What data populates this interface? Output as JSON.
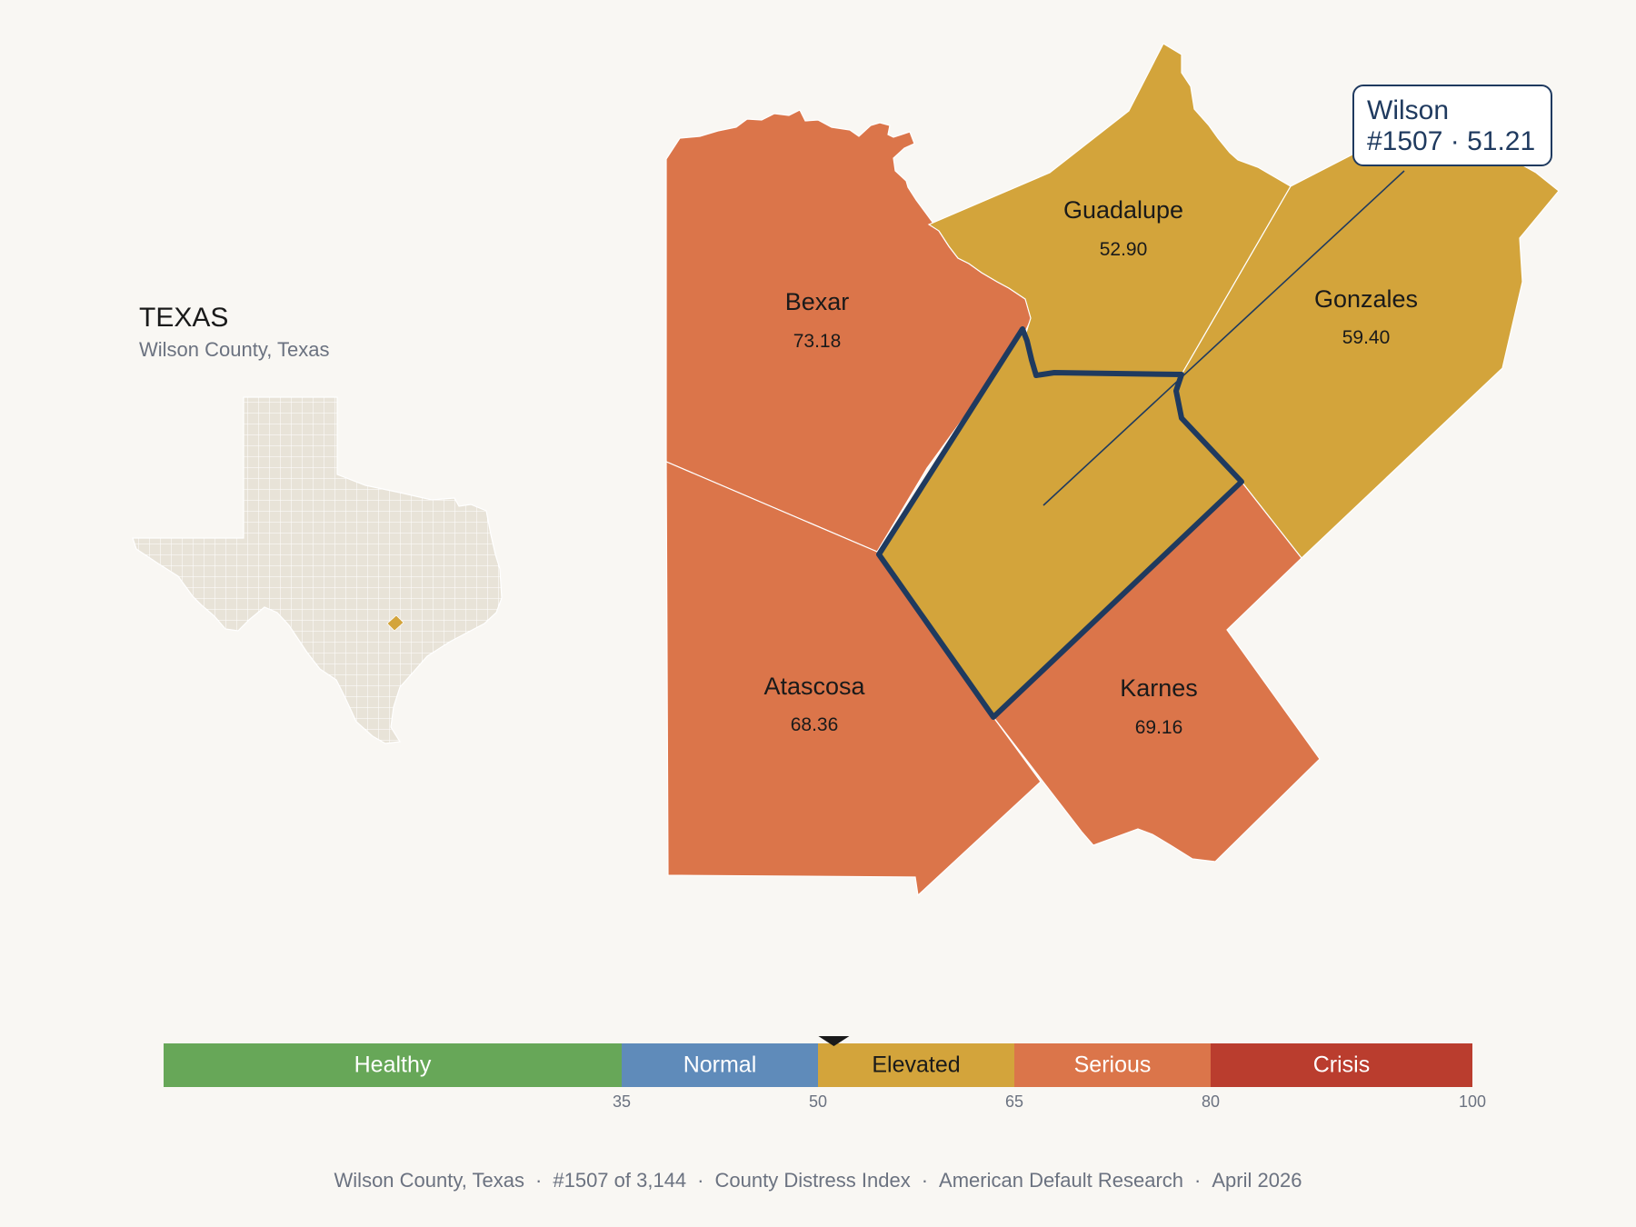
{
  "inset": {
    "state_title": "TEXAS",
    "subtitle": "Wilson County, Texas"
  },
  "counties": [
    {
      "name": "Bexar",
      "value": "73.18",
      "band": "Serious",
      "color": "#db754a"
    },
    {
      "name": "Guadalupe",
      "value": "52.90",
      "band": "Elevated",
      "color": "#d3a43b"
    },
    {
      "name": "Gonzales",
      "value": "59.40",
      "band": "Elevated",
      "color": "#d3a43b"
    },
    {
      "name": "Atascosa",
      "value": "68.36",
      "band": "Serious",
      "color": "#db754a"
    },
    {
      "name": "Karnes",
      "value": "69.16",
      "band": "Serious",
      "color": "#db754a"
    },
    {
      "name": "Wilson",
      "value": "51.21",
      "band": "Elevated",
      "color": "#d3a43b",
      "highlighted": true
    }
  ],
  "callout": {
    "line1": "Wilson",
    "line2": "#1507 · 51.21"
  },
  "legend": {
    "marker_value": 51.21,
    "bands": [
      {
        "label": "Healthy",
        "from": 0,
        "to": 35,
        "color": "#67a758"
      },
      {
        "label": "Normal",
        "from": 35,
        "to": 50,
        "color": "#5f8bba"
      },
      {
        "label": "Elevated",
        "from": 50,
        "to": 65,
        "color": "#d3a43b"
      },
      {
        "label": "Serious",
        "from": 65,
        "to": 80,
        "color": "#db754a"
      },
      {
        "label": "Crisis",
        "from": 80,
        "to": 100,
        "color": "#ba3d2e"
      }
    ],
    "ticks": [
      "35",
      "50",
      "65",
      "80",
      "100"
    ]
  },
  "footer": {
    "location": "Wilson County, Texas",
    "rank": "#1507 of 3,144",
    "index": "County Distress Index",
    "source": "American Default Research",
    "date": "April 2026"
  },
  "colors": {
    "background": "#f9f7f3",
    "outline": "#1f3a5f",
    "inset_fill": "#e8e3d8"
  }
}
